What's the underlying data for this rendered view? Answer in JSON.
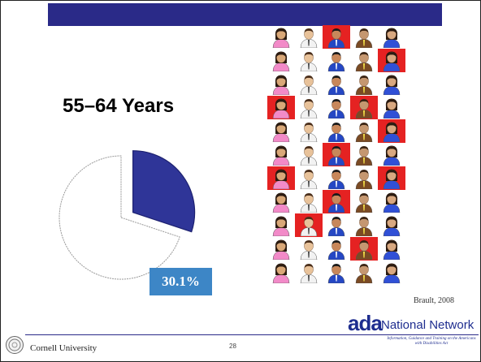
{
  "slide": {
    "heading": "55–64 Years",
    "source": "Brault, 2008",
    "page_number": "28"
  },
  "footer": {
    "university": "Cornell University",
    "logo_letters": "ada",
    "network_label": "National Network",
    "tagline": "Information, Guidance and Training on the Americans with Disabilities Act"
  },
  "colors": {
    "title_bar": "#2a2a88",
    "pie_highlight": "#2f3598",
    "label_box": "#3d86c6",
    "grid_highlight": "#e52222"
  },
  "chart_data": {
    "type": "pie",
    "title": "55–64 Years",
    "slices": [
      {
        "value": 30.1,
        "label": "30.1%",
        "exploded": true,
        "fill": "#2f3598"
      },
      {
        "value": 69.9,
        "label": "",
        "exploded": false,
        "fill": "#ffffff"
      }
    ]
  },
  "people_grid": {
    "columns": 5,
    "icon_types": [
      "woman-pink",
      "man-white",
      "man-blue",
      "man-brown",
      "woman-blue"
    ],
    "highlighted": [
      [
        false,
        false,
        true,
        false,
        false
      ],
      [
        false,
        false,
        false,
        false,
        true
      ],
      [
        false,
        false,
        false,
        false,
        false
      ],
      [
        true,
        false,
        false,
        true,
        false
      ],
      [
        false,
        false,
        false,
        false,
        true
      ],
      [
        false,
        false,
        true,
        false,
        false
      ],
      [
        true,
        false,
        false,
        false,
        true
      ],
      [
        false,
        false,
        true,
        false,
        false
      ],
      [
        false,
        true,
        false,
        false,
        false
      ],
      [
        false,
        false,
        false,
        true,
        false
      ],
      [
        false,
        false,
        false,
        false,
        false
      ]
    ]
  }
}
